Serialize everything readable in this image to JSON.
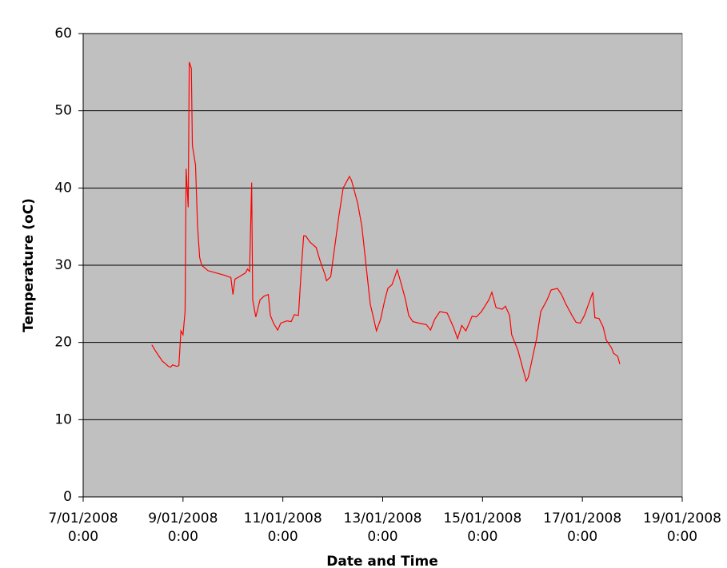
{
  "chart_data": {
    "type": "line",
    "x_label": "Date and Time",
    "y_label": "Temperature (oC)",
    "x": [
      "2008-01-08 09:00",
      "2008-01-08 11:00",
      "2008-01-08 14:00",
      "2008-01-08 17:00",
      "2008-01-08 18:00",
      "2008-01-08 19:00",
      "2008-01-08 21:00",
      "2008-01-08 22:00",
      "2008-01-08 23:00",
      "2008-01-09 00:00",
      "2008-01-09 01:00",
      "2008-01-09 01:30",
      "2008-01-09 02:30",
      "2008-01-09 03:00",
      "2008-01-09 04:00",
      "2008-01-09 04:30",
      "2008-01-09 06:00",
      "2008-01-09 07:00",
      "2008-01-09 08:00",
      "2008-01-09 09:00",
      "2008-01-09 12:00",
      "2008-01-09 16:00",
      "2008-01-09 20:00",
      "2008-01-09 23:00",
      "2008-01-10 00:00",
      "2008-01-10 01:00",
      "2008-01-10 03:00",
      "2008-01-10 06:00",
      "2008-01-10 07:00",
      "2008-01-10 08:00",
      "2008-01-10 09:00",
      "2008-01-10 09:30",
      "2008-01-10 11:00",
      "2008-01-10 13:00",
      "2008-01-10 15:00",
      "2008-01-10 17:00",
      "2008-01-10 18:00",
      "2008-01-10 19:30",
      "2008-01-10 21:30",
      "2008-01-10 23:00",
      "2008-01-11 02:00",
      "2008-01-11 04:00",
      "2008-01-11 05:30",
      "2008-01-11 07:30",
      "2008-01-11 09:00",
      "2008-01-11 10:00",
      "2008-01-11 11:00",
      "2008-01-11 13:00",
      "2008-01-11 16:00",
      "2008-01-11 18:00",
      "2008-01-11 20:00",
      "2008-01-11 21:00",
      "2008-01-11 23:00",
      "2008-01-12 01:00",
      "2008-01-12 03:00",
      "2008-01-12 05:00",
      "2008-01-12 08:00",
      "2008-01-12 09:00",
      "2008-01-12 11:00",
      "2008-01-12 12:00",
      "2008-01-12 14:00",
      "2008-01-12 16:00",
      "2008-01-12 18:00",
      "2008-01-12 21:00",
      "2008-01-12 23:00",
      "2008-01-13 01:00",
      "2008-01-13 02:30",
      "2008-01-13 04:30",
      "2008-01-13 07:00",
      "2008-01-13 09:00",
      "2008-01-13 11:00",
      "2008-01-13 12:30",
      "2008-01-13 14:30",
      "2008-01-13 17:30",
      "2008-01-13 21:00",
      "2008-01-13 23:00",
      "2008-01-14 01:00",
      "2008-01-14 03:30",
      "2008-01-14 07:00",
      "2008-01-14 10:00",
      "2008-01-14 12:00",
      "2008-01-14 14:00",
      "2008-01-14 16:00",
      "2008-01-14 19:00",
      "2008-01-14 21:00",
      "2008-01-14 23:30",
      "2008-01-15 03:00",
      "2008-01-15 04:30",
      "2008-01-15 06:30",
      "2008-01-15 09:30",
      "2008-01-15 11:00",
      "2008-01-15 13:00",
      "2008-01-15 14:00",
      "2008-01-15 17:00",
      "2008-01-15 19:00",
      "2008-01-15 21:00",
      "2008-01-15 22:00",
      "2008-01-16 00:00",
      "2008-01-16 02:00",
      "2008-01-16 04:00",
      "2008-01-16 07:00",
      "2008-01-16 09:00",
      "2008-01-16 12:00",
      "2008-01-16 14:00",
      "2008-01-16 16:00",
      "2008-01-16 19:00",
      "2008-01-16 21:00",
      "2008-01-16 23:00",
      "2008-01-17 01:00",
      "2008-01-17 03:00",
      "2008-01-17 05:00",
      "2008-01-17 06:00",
      "2008-01-17 08:00",
      "2008-01-17 10:00",
      "2008-01-17 11:30",
      "2008-01-17 14:00",
      "2008-01-17 15:00",
      "2008-01-17 17:00",
      "2008-01-17 18:00"
    ],
    "series": [
      {
        "color": "#ff0000",
        "values": [
          19.7,
          18.8,
          17.6,
          16.9,
          16.8,
          17.1,
          16.9,
          17.0,
          21.5,
          21.0,
          24,
          42.5,
          37.5,
          56.3,
          55.5,
          45.5,
          43,
          35,
          31,
          30,
          29.3,
          29,
          28.7,
          28.4,
          26.2,
          28.2,
          28.5,
          29,
          29.5,
          29.2,
          40.7,
          25.5,
          23.3,
          25.5,
          26.0,
          26.2,
          23.5,
          22.5,
          21.6,
          22.5,
          22.8,
          22.7,
          23.6,
          23.5,
          30,
          33.8,
          33.8,
          33.0,
          32.3,
          30.5,
          29.0,
          28.0,
          28.5,
          32.5,
          36.5,
          40,
          41.5,
          41,
          39,
          38,
          35,
          30,
          25,
          21.5,
          23,
          25.5,
          27.0,
          27.5,
          29.4,
          27.5,
          25.5,
          23.5,
          22.7,
          22.5,
          22.3,
          21.6,
          23.0,
          24.0,
          23.8,
          22,
          20.5,
          22.2,
          21.5,
          23.4,
          23.3,
          24,
          25.5,
          26.5,
          24.5,
          24.3,
          24.7,
          23.5,
          21,
          19,
          17,
          15,
          15.5,
          18,
          20.5,
          24,
          25.5,
          26.8,
          27,
          26.2,
          25.0,
          23.5,
          22.6,
          22.5,
          23.5,
          25,
          26.5,
          23.2,
          23.1,
          22,
          20.3,
          19.3,
          18.6,
          18.2,
          17.2
        ]
      }
    ],
    "xlim": [
      "2008-01-07 00:00",
      "2008-01-19 00:00"
    ],
    "xticks": [
      {
        "value": "2008-01-07 00:00",
        "label": "7/01/2008 0:00"
      },
      {
        "value": "2008-01-09 00:00",
        "label": "9/01/2008 0:00"
      },
      {
        "value": "2008-01-11 00:00",
        "label": "11/01/2008 0:00"
      },
      {
        "value": "2008-01-13 00:00",
        "label": "13/01/2008 0:00"
      },
      {
        "value": "2008-01-15 00:00",
        "label": "15/01/2008 0:00"
      },
      {
        "value": "2008-01-17 00:00",
        "label": "17/01/2008 0:00"
      },
      {
        "value": "2008-01-19 00:00",
        "label": "19/01/2008 0:00"
      }
    ],
    "ylim": [
      0,
      60
    ],
    "yticks": [
      0,
      10,
      20,
      30,
      40,
      50,
      60
    ],
    "grid": true,
    "plot_background": "#c0c0c0"
  }
}
